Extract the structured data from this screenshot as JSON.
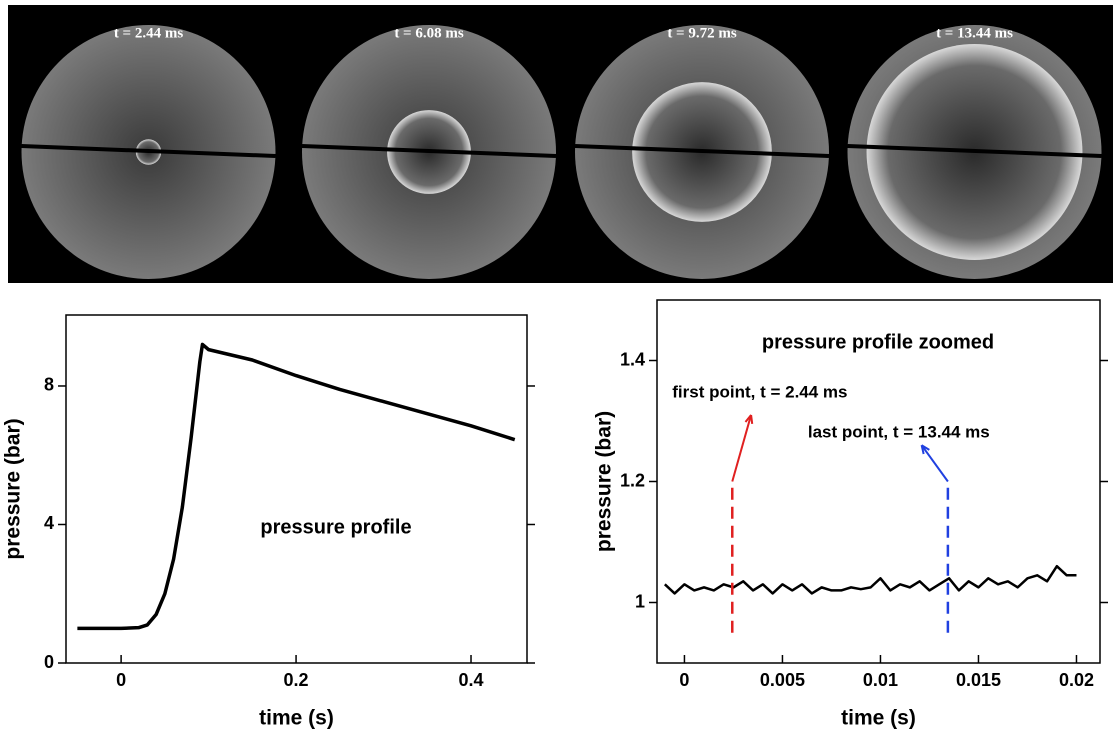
{
  "frames": [
    {
      "label": "t = 2.44 ms",
      "radius": 0.1
    },
    {
      "label": "t = 6.08 ms",
      "radius": 0.33
    },
    {
      "label": "t = 9.72 ms",
      "radius": 0.55
    },
    {
      "label": "t = 13.44 ms",
      "radius": 0.85
    }
  ],
  "chart_data": [
    {
      "type": "line",
      "annotation": "pressure profile",
      "x_label": "time (s)",
      "y_label": "pressure (bar)",
      "xlim": [
        -0.063,
        0.464
      ],
      "ylim": [
        0,
        10.05
      ],
      "xticks": [
        0,
        0.2,
        0.4
      ],
      "yticks": [
        0,
        4,
        8
      ],
      "series": [
        {
          "color": "#000000",
          "x": [
            -0.05,
            0,
            0.02,
            0.03,
            0.04,
            0.05,
            0.06,
            0.07,
            0.08,
            0.09,
            0.093,
            0.1,
            0.15,
            0.2,
            0.25,
            0.3,
            0.35,
            0.4,
            0.45
          ],
          "values": [
            1.0,
            1.0,
            1.02,
            1.1,
            1.4,
            2.0,
            3.0,
            4.5,
            6.5,
            8.7,
            9.2,
            9.05,
            8.75,
            8.3,
            7.9,
            7.55,
            7.2,
            6.85,
            6.45
          ]
        }
      ]
    },
    {
      "type": "line",
      "annotation": "pressure profile zoomed",
      "x_label": "time (s)",
      "y_label": "pressure (bar)",
      "xlim": [
        -0.0014,
        0.0212
      ],
      "ylim": [
        0.9,
        1.5
      ],
      "xticks": [
        0,
        0.005,
        0.01,
        0.015,
        0.02
      ],
      "yticks": [
        1,
        1.2,
        1.4
      ],
      "series": [
        {
          "color": "#000000",
          "x": [
            -0.001,
            -0.0005,
            0,
            0.0005,
            0.001,
            0.0015,
            0.002,
            0.0025,
            0.003,
            0.0035,
            0.004,
            0.0045,
            0.005,
            0.0055,
            0.006,
            0.0065,
            0.007,
            0.0075,
            0.008,
            0.0085,
            0.009,
            0.0095,
            0.01,
            0.0105,
            0.011,
            0.0115,
            0.012,
            0.0125,
            0.013,
            0.0135,
            0.014,
            0.0145,
            0.015,
            0.0155,
            0.016,
            0.0165,
            0.017,
            0.0175,
            0.018,
            0.0185,
            0.019,
            0.0195,
            0.02
          ],
          "values": [
            1.03,
            1.015,
            1.03,
            1.02,
            1.025,
            1.02,
            1.03,
            1.025,
            1.035,
            1.02,
            1.03,
            1.015,
            1.03,
            1.02,
            1.03,
            1.015,
            1.025,
            1.02,
            1.02,
            1.025,
            1.022,
            1.025,
            1.04,
            1.02,
            1.03,
            1.025,
            1.035,
            1.02,
            1.03,
            1.04,
            1.02,
            1.035,
            1.025,
            1.04,
            1.03,
            1.035,
            1.025,
            1.04,
            1.045,
            1.035,
            1.06,
            1.045,
            1.045
          ]
        }
      ],
      "vlines": [
        {
          "x": 0.00244,
          "y": [
            0.95,
            1.2
          ],
          "color": "#e02020",
          "label": "first point, t = 2.44 ms",
          "arrow_to": [
            0.0034,
            1.31
          ]
        },
        {
          "x": 0.01344,
          "y": [
            0.95,
            1.2
          ],
          "color": "#2040e0",
          "label": "last point, t = 13.44 ms",
          "arrow_to": [
            0.0121,
            1.26
          ]
        }
      ]
    }
  ]
}
